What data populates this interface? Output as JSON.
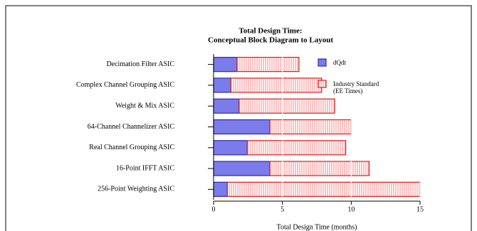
{
  "chart_data": {
    "type": "stacked-barh",
    "title": "Total Design Time:",
    "subtitle": "Conceptual Block Diagram to Layout",
    "x_label": "Total Design Time (months)",
    "categories": [
      "Decimation Filter ASIC",
      "Complex Channel Grouping ASIC",
      "Weight & Mix ASIC",
      "64-Channel Channelizer ASIC",
      "Real Channel Grouping ASIC",
      "16-Point IFFT ASIC",
      "256-Point Weighting ASIC"
    ],
    "series": [
      {
        "name": "dQdt",
        "color": "#7b7bea",
        "values": [
          1.7,
          1.25,
          1.85,
          4.1,
          2.45,
          4.1,
          1.0
        ]
      },
      {
        "name": "Industry Standard (EE Times)",
        "color": "#f8c4c4",
        "values": [
          4.5,
          6.6,
          6.95,
          5.9,
          7.15,
          7.2,
          14.0
        ]
      }
    ],
    "xlim": [
      0,
      15
    ],
    "xticks": [
      0,
      5,
      10,
      15
    ],
    "grid": true
  }
}
